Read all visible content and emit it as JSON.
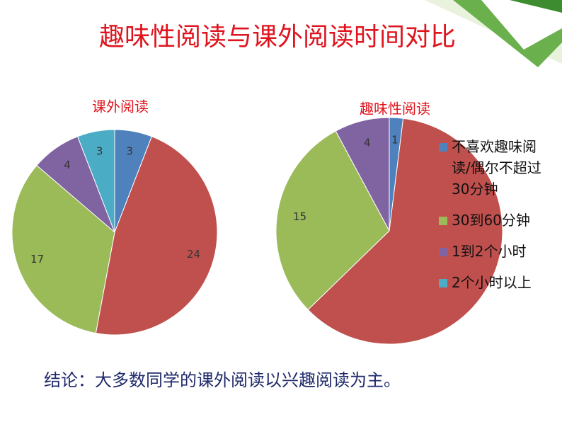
{
  "title": "趣味性阅读与课外阅读时间对比",
  "conclusion": "结论：大多数同学的课外阅读以兴趣阅读为主。",
  "chart_data": [
    {
      "type": "pie",
      "title": "课外阅读",
      "categories": [
        "不喜欢趣味阅读/偶尔不超过30分钟",
        null,
        "30到60分钟",
        "1到2个小时",
        "2个小时以上"
      ],
      "values": [
        3,
        24,
        17,
        4,
        3
      ],
      "colors": [
        "#4f81bd",
        "#c0504d",
        "#9bbb59",
        "#8064a2",
        "#4bacc6"
      ],
      "labeled": [
        true,
        true,
        true,
        true,
        true
      ]
    },
    {
      "type": "pie",
      "title": "趣味性阅读",
      "categories": [
        "不喜欢趣味阅读/偶尔不超过30分钟",
        null,
        "30到60分钟",
        "1到2个小时",
        "2个小时以上"
      ],
      "values": [
        1,
        31,
        15,
        4,
        0
      ],
      "colors": [
        "#4f81bd",
        "#c0504d",
        "#9bbb59",
        "#8064a2",
        "#4bacc6"
      ],
      "labeled": [
        true,
        false,
        true,
        true,
        false
      ],
      "legend": "right"
    }
  ]
}
